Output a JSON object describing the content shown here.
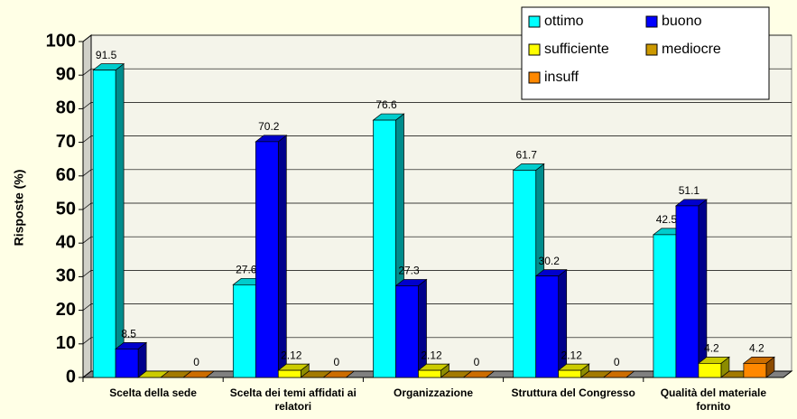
{
  "chart_data": {
    "type": "bar3d",
    "y_label": "Risposte (%)",
    "categories": [
      "Scelta della sede",
      "Scelta dei temi affidati ai relatori",
      "Organizzazione",
      "Struttura del Congresso",
      "Qualità del materiale fornito"
    ],
    "series": [
      {
        "name": "ottimo",
        "color": "#00ffff",
        "values": [
          91.5,
          27.6,
          76.6,
          61.7,
          42.5
        ],
        "value_labels": [
          "91.5",
          "27.6",
          "76.6",
          "61.7",
          "42.5"
        ]
      },
      {
        "name": "buono",
        "color": "#0000ff",
        "values": [
          8.5,
          70.2,
          27.3,
          30.2,
          51.1
        ],
        "value_labels": [
          "8.5",
          "70.2",
          "27.3",
          "30.2",
          "51.1"
        ]
      },
      {
        "name": "sufficiente",
        "color": "#ffff00",
        "values": [
          0,
          2.12,
          2.12,
          2.12,
          4.2
        ],
        "value_labels": [
          null,
          "2.12",
          "2.12",
          "2.12",
          "4.2"
        ]
      },
      {
        "name": "mediocre",
        "color": "#cc9900",
        "values": [
          0,
          0,
          0,
          0,
          0
        ],
        "value_labels": [
          null,
          null,
          null,
          null,
          null
        ]
      },
      {
        "name": "insuff",
        "color": "#ff8800",
        "values": [
          0,
          0,
          0,
          0,
          4.2
        ],
        "value_labels": [
          "0",
          "0",
          "0",
          "0",
          "4.2"
        ]
      }
    ],
    "ylim": [
      0,
      100
    ],
    "yticks": [
      0,
      10,
      20,
      30,
      40,
      50,
      60,
      70,
      80,
      90,
      100
    ],
    "grid": true,
    "legend": "top-right"
  }
}
